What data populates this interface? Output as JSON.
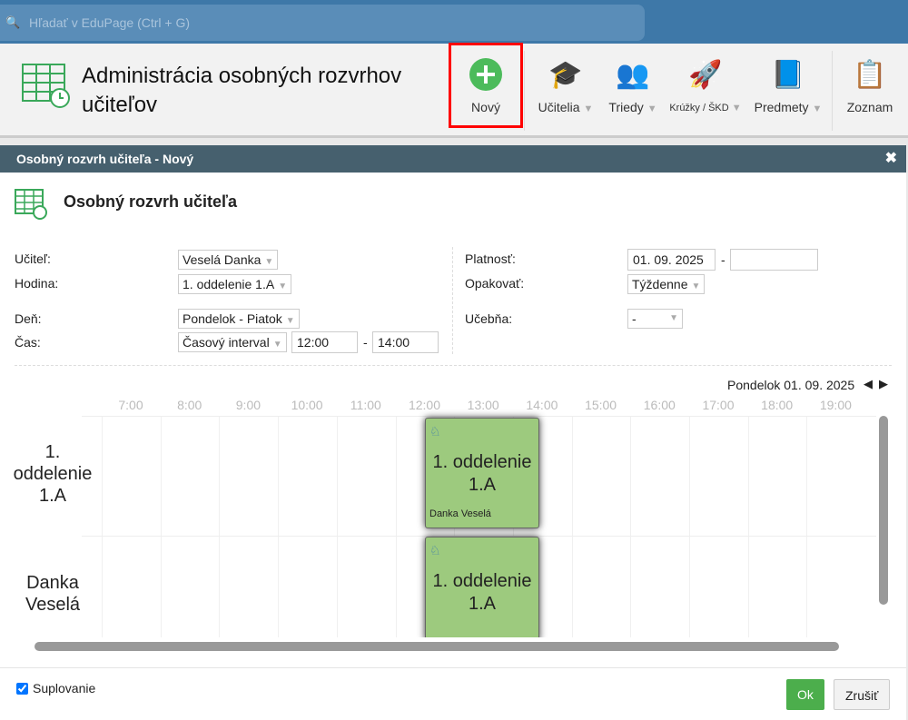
{
  "search": {
    "placeholder": "Hľadať v EduPage (Ctrl + G)",
    "icon": "search-icon"
  },
  "page_title": "Administrácia osobných rozvrhov učiteľov",
  "toolbar": [
    {
      "label": "Nový",
      "icon": "plus-circle-icon"
    },
    {
      "label": "Učitelia",
      "icon": "graduation-cap-icon"
    },
    {
      "label": "Triedy",
      "icon": "people-icon"
    },
    {
      "label": "Krúžky / ŠKD",
      "icon": "rocket-icon"
    },
    {
      "label": "Predmety",
      "icon": "book-icon"
    },
    {
      "label": "Zoznam",
      "icon": "list-icon"
    }
  ],
  "dialog": {
    "title": "Osobný rozvrh učiteľa - Nový",
    "subtitle": "Osobný rozvrh učiteľa",
    "fields": {
      "teacher_label": "Učiteľ:",
      "teacher": "Veselá Danka",
      "lesson_label": "Hodina:",
      "lesson": "1. oddelenie 1.A",
      "day_label": "Deň:",
      "day": "Pondelok - Piatok",
      "time_label": "Čas:",
      "time_mode": "Časový interval",
      "time_from": "12:00",
      "time_to": "14:00",
      "validity_label": "Platnosť:",
      "validity_from": "01. 09. 2025",
      "validity_to": "",
      "repeat_label": "Opakovať:",
      "repeat": "Týždenne",
      "room_label": "Učebňa:",
      "room": "-",
      "dash": "-"
    },
    "date_nav": "Pondelok 01. 09. 2025",
    "hours": [
      "7:00",
      "8:00",
      "9:00",
      "10:00",
      "11:00",
      "12:00",
      "13:00",
      "14:00",
      "15:00",
      "16:00",
      "17:00",
      "18:00",
      "19:00"
    ],
    "rows": [
      {
        "label": "1. oddelenie 1.A",
        "block": "1. oddelenie 1.A",
        "teacher": "Danka Veselá"
      },
      {
        "label": "Danka Veselá",
        "block": "1. oddelenie 1.A"
      }
    ],
    "substitution_label": "Suplovanie",
    "substitution_checked": true,
    "ok": "Ok",
    "cancel": "Zrušiť"
  },
  "colors": {
    "topbar": "#3e78a8",
    "dialog_header": "#46606e",
    "block": "#9dca7e",
    "ok": "#4cae4c"
  }
}
